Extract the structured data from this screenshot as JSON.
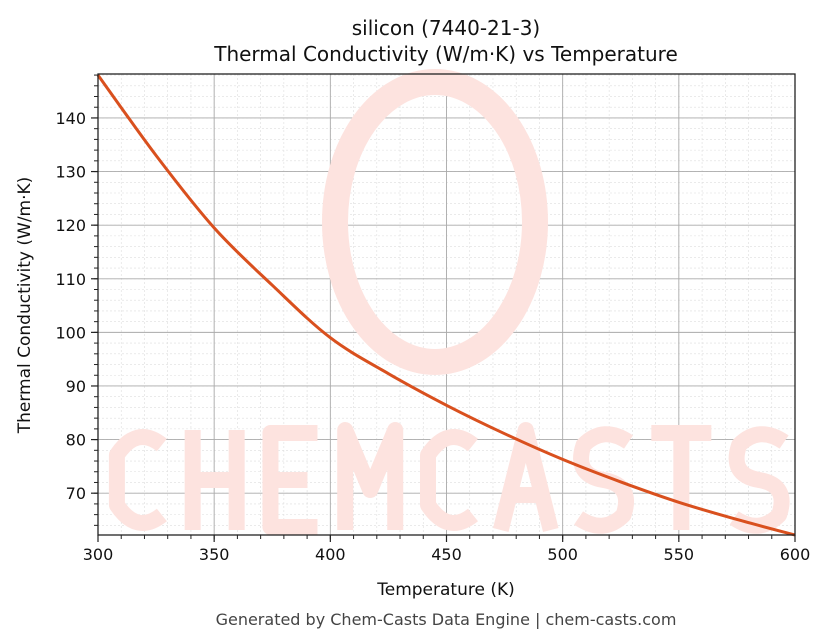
{
  "chart_data": {
    "type": "line",
    "title": "silicon (7440-21-3)",
    "subtitle": "Thermal Conductivity (W/m·K) vs Temperature",
    "xlabel": "Temperature (K)",
    "ylabel": "Thermal Conductivity (W/m·K)",
    "xlim": [
      300,
      600
    ],
    "ylim": [
      62.2,
      148.2
    ],
    "xticks": [
      300,
      350,
      400,
      450,
      500,
      550,
      600
    ],
    "yticks": [
      70,
      80,
      90,
      100,
      110,
      120,
      130,
      140
    ],
    "grid": true,
    "legend": "none",
    "series": [
      {
        "color": "#d9501e",
        "x": [
          300,
          325,
          350,
          375,
          400,
          425,
          450,
          475,
          500,
          525,
          550,
          575,
          600
        ],
        "y": [
          148.0,
          133.0,
          119.5,
          108.8,
          99.0,
          92.3,
          86.4,
          81.1,
          76.3,
          72.1,
          68.3,
          65.1,
          62.2
        ]
      }
    ]
  },
  "watermark": "CHEMCASTS",
  "footer": "Generated by Chem-Casts Data Engine | chem-casts.com"
}
